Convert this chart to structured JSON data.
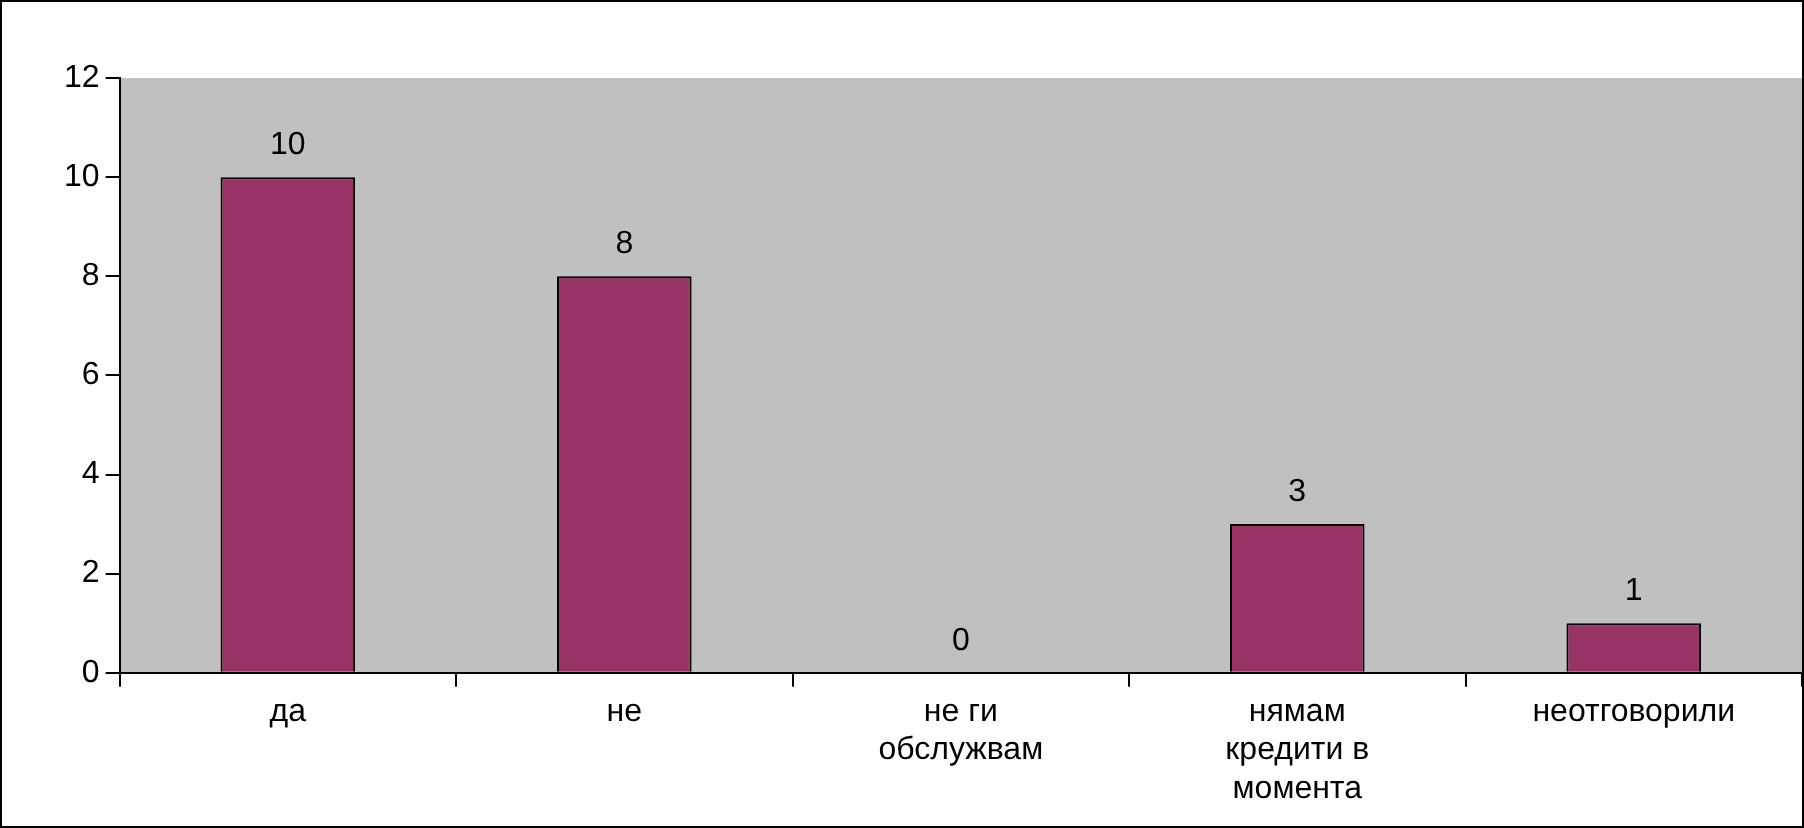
{
  "chart_data": {
    "type": "bar",
    "categories": [
      "да",
      "не",
      "не ги обслужвам",
      "нямам кредити в момента",
      "неотговорили"
    ],
    "values": [
      10,
      8,
      0,
      3,
      1
    ],
    "color": "#993366",
    "ylim": [
      0,
      12
    ],
    "yticks": [
      0,
      2,
      4,
      6,
      8,
      10,
      12
    ],
    "grid": false,
    "legend": false,
    "data_labels": true
  }
}
